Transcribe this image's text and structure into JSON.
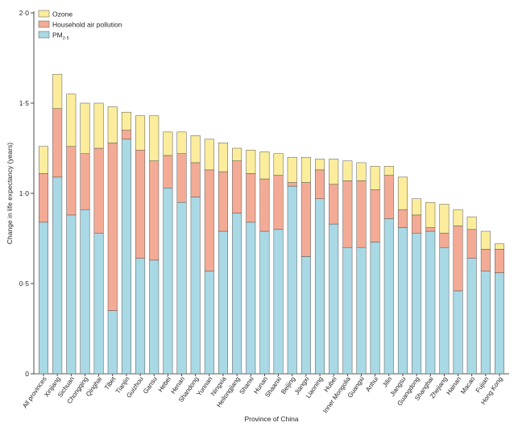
{
  "chart_data": {
    "type": "bar",
    "stacked": true,
    "title": "",
    "xlabel": "Province of China",
    "ylabel": "Change in life expectancy (years)",
    "ylim": [
      0,
      2.0
    ],
    "yticks": [
      "0",
      "0·5",
      "1·0",
      "1·5",
      "2·0"
    ],
    "ytick_values": [
      0,
      0.5,
      1.0,
      1.5,
      2.0
    ],
    "grid": false,
    "legend_position": "top-left",
    "categories": [
      "All provinces",
      "Xinjiang",
      "Sichuan",
      "Chongqing",
      "Qinghai",
      "Tibet",
      "Tianjin",
      "Guizhou",
      "Gansu",
      "Hebei",
      "Henan",
      "Shandong",
      "Yunnan",
      "Ningxia",
      "Heilongjiang",
      "Shanxi",
      "Hunan",
      "Shaanxi",
      "Beijing",
      "Jiangxi",
      "Liaoning",
      "Hubei",
      "Inner Mongolia",
      "Guangxi",
      "Anhui",
      "Jilin",
      "Jiangsu",
      "Guangdong",
      "Shanghai",
      "Zhejiang",
      "Hainan",
      "Macao",
      "Fujian",
      "Hong Kong"
    ],
    "series": [
      {
        "name": "PM",
        "subscript": "2·5",
        "color": "#a8d9e5",
        "values": [
          0.84,
          1.09,
          0.88,
          0.91,
          0.78,
          0.35,
          1.3,
          0.64,
          0.63,
          1.03,
          0.95,
          0.98,
          0.57,
          0.79,
          0.89,
          0.84,
          0.79,
          0.8,
          1.04,
          0.65,
          0.97,
          0.83,
          0.7,
          0.7,
          0.73,
          0.86,
          0.81,
          0.78,
          0.79,
          0.7,
          0.46,
          0.64,
          0.57,
          0.56
        ]
      },
      {
        "name": "Household air pollution",
        "color": "#f4ab95",
        "values": [
          0.27,
          0.38,
          0.38,
          0.31,
          0.47,
          0.93,
          0.05,
          0.6,
          0.55,
          0.18,
          0.27,
          0.19,
          0.56,
          0.33,
          0.29,
          0.27,
          0.29,
          0.3,
          0.02,
          0.41,
          0.16,
          0.22,
          0.37,
          0.37,
          0.29,
          0.24,
          0.1,
          0.1,
          0.02,
          0.08,
          0.36,
          0.16,
          0.12,
          0.13
        ]
      },
      {
        "name": "Ozone",
        "color": "#fbed9b",
        "values": [
          0.15,
          0.19,
          0.29,
          0.28,
          0.25,
          0.2,
          0.1,
          0.19,
          0.25,
          0.13,
          0.12,
          0.15,
          0.17,
          0.16,
          0.07,
          0.13,
          0.15,
          0.12,
          0.14,
          0.14,
          0.06,
          0.14,
          0.11,
          0.1,
          0.13,
          0.05,
          0.18,
          0.09,
          0.14,
          0.16,
          0.09,
          0.07,
          0.1,
          0.03
        ]
      }
    ]
  }
}
